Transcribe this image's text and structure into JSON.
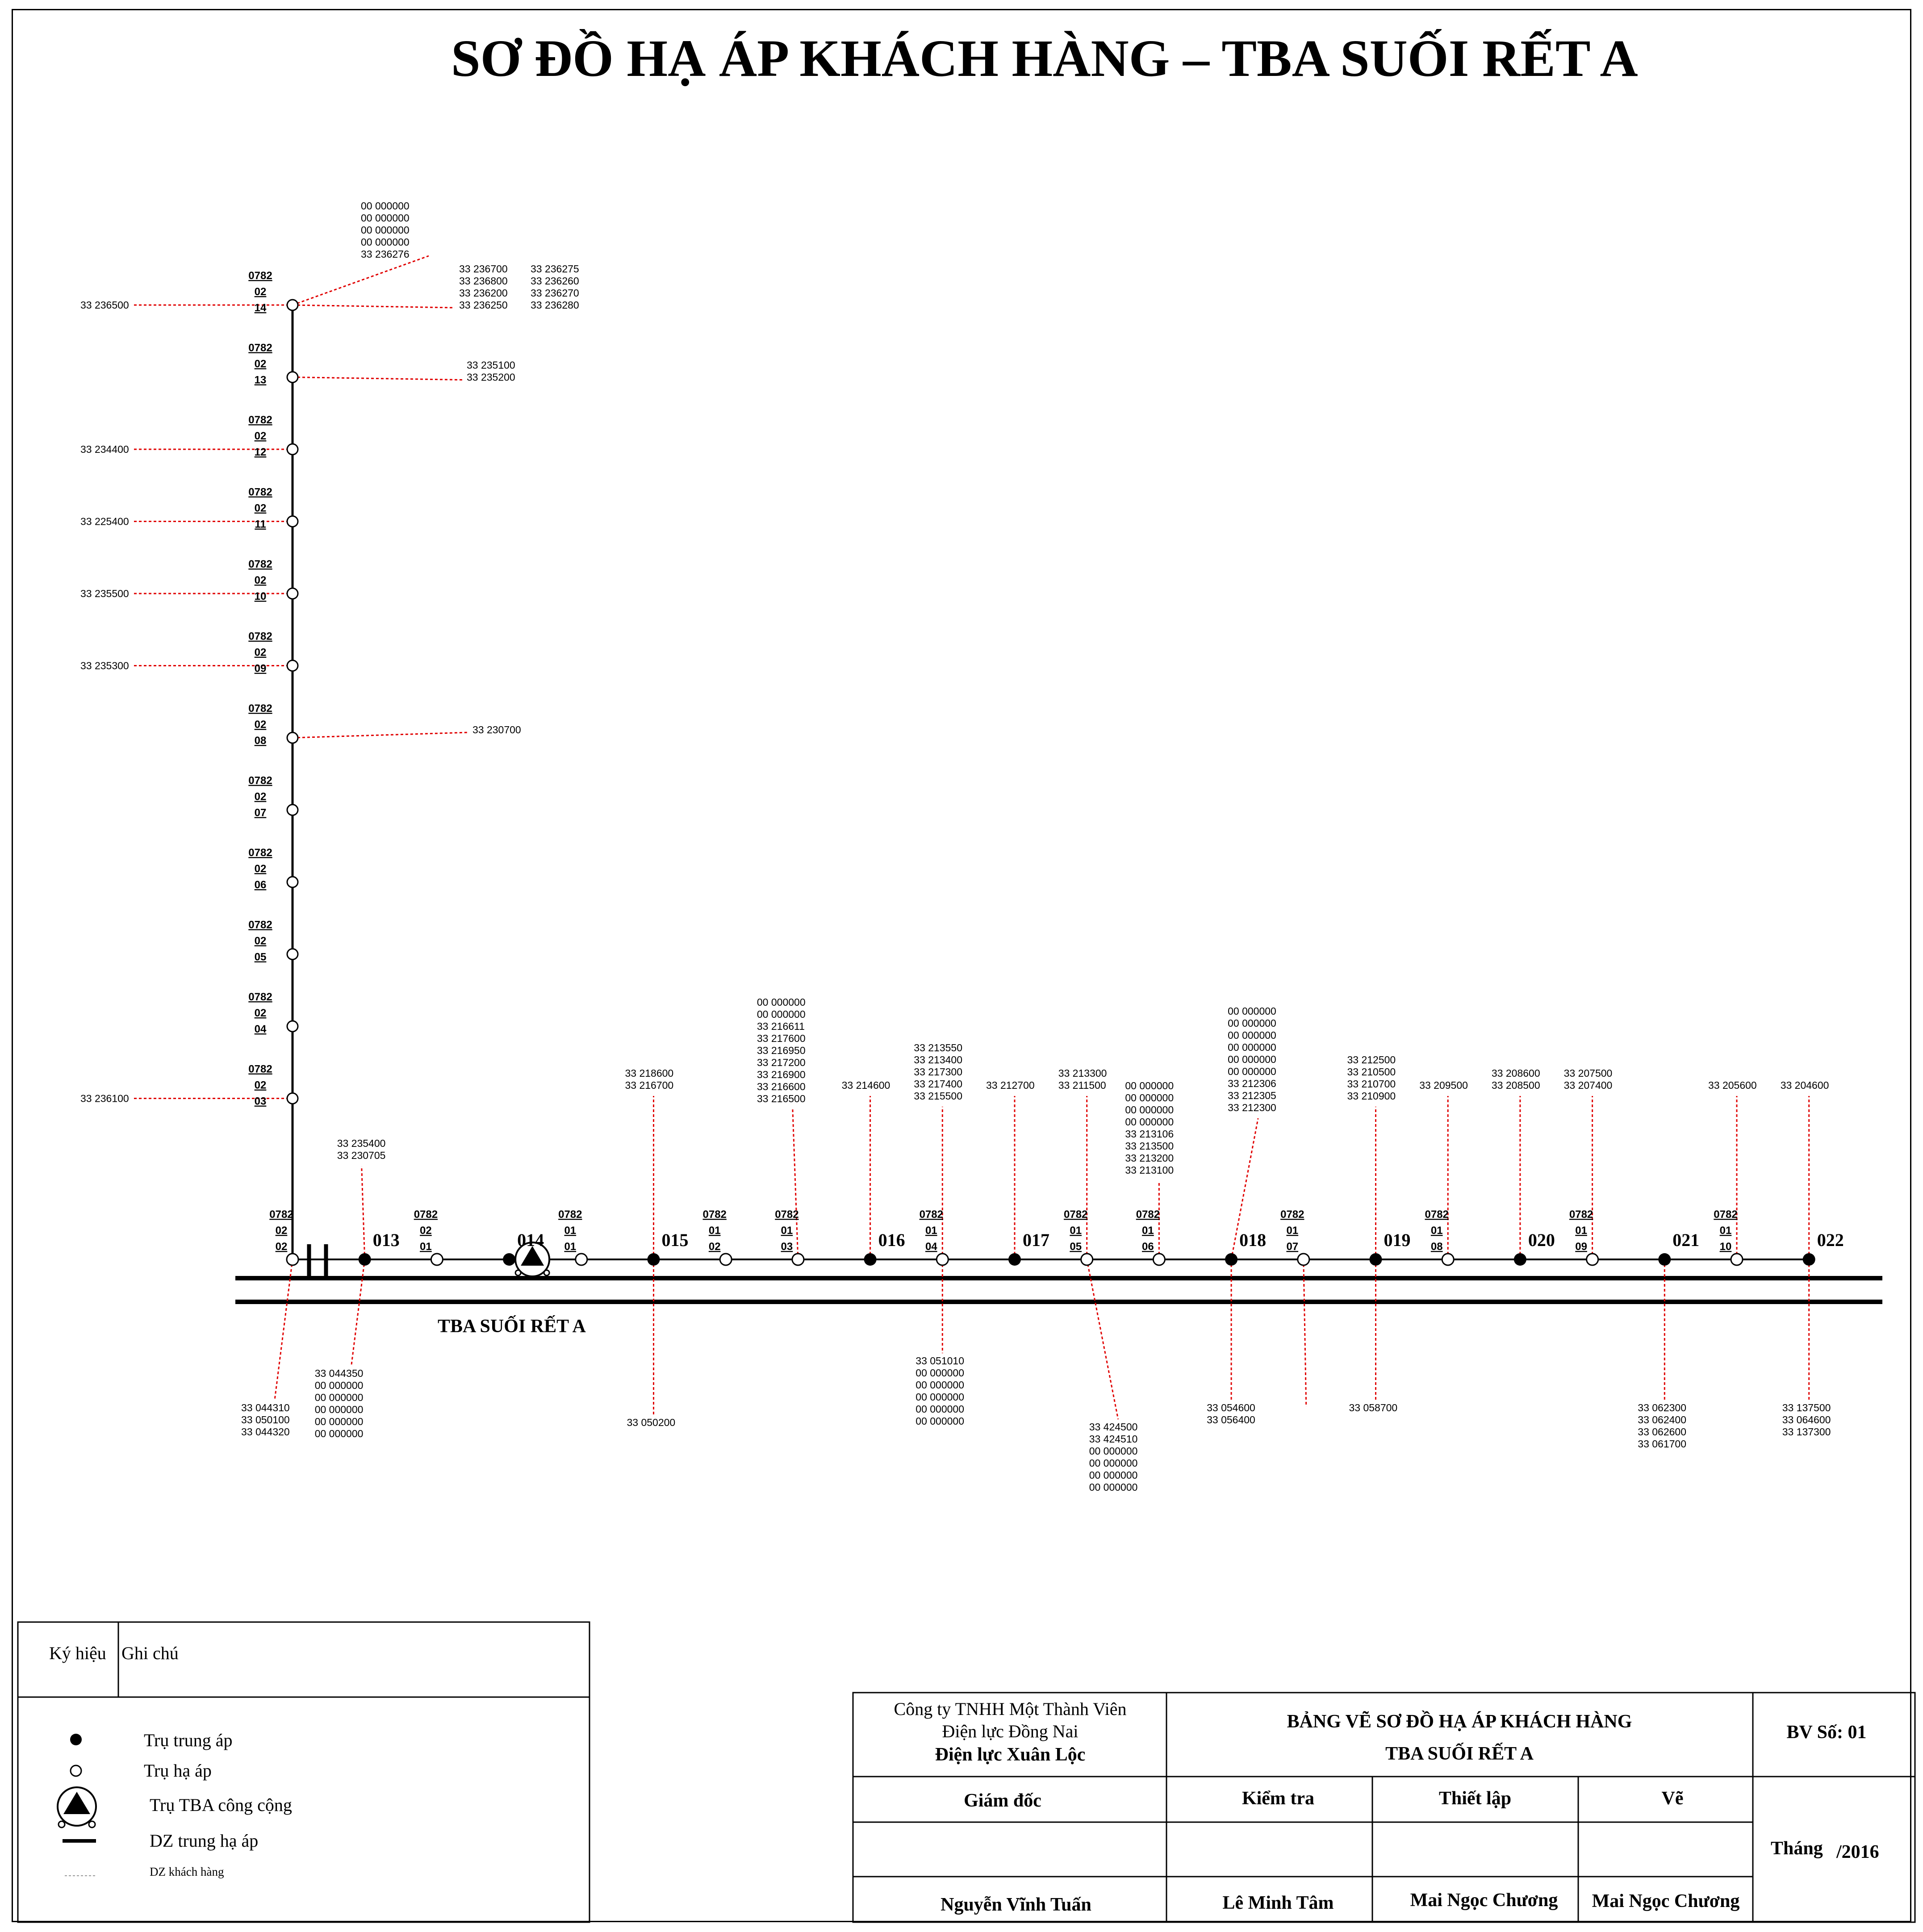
{
  "title": "SƠ ĐỒ HẠ ÁP KHÁCH HÀNG – TBA SUỐI RẾT A",
  "station_label": "TBA SUỐI RẾT A",
  "colors": {
    "line": "#000000",
    "customer_line": "#e00000"
  },
  "vertical_branch": {
    "poles": [
      {
        "code": [
          "0782",
          "02",
          "14"
        ],
        "left": [
          "33 236500"
        ],
        "right_a": [
          "33 236700",
          "33 236800",
          "33 236200",
          "33 236250"
        ],
        "right_b": [
          "33 236275",
          "33 236260",
          "33 236270",
          "33 236280"
        ],
        "top": [
          "00 000000",
          "00 000000",
          "00 000000",
          "00 000000",
          "33 236276"
        ]
      },
      {
        "code": [
          "0782",
          "02",
          "13"
        ],
        "right_a": [
          "33 235100",
          "33 235200"
        ]
      },
      {
        "code": [
          "0782",
          "02",
          "12"
        ],
        "left": [
          "33 234400"
        ]
      },
      {
        "code": [
          "0782",
          "02",
          "11"
        ],
        "left": [
          "33 225400"
        ]
      },
      {
        "code": [
          "0782",
          "02",
          "10"
        ],
        "left": [
          "33 235500"
        ]
      },
      {
        "code": [
          "0782",
          "02",
          "09"
        ],
        "left": [
          "33 235300"
        ]
      },
      {
        "code": [
          "0782",
          "02",
          "08"
        ],
        "right_a": [
          "33 230700"
        ]
      },
      {
        "code": [
          "0782",
          "02",
          "07"
        ]
      },
      {
        "code": [
          "0782",
          "02",
          "06"
        ]
      },
      {
        "code": [
          "0782",
          "02",
          "05"
        ]
      },
      {
        "code": [
          "0782",
          "02",
          "04"
        ]
      },
      {
        "code": [
          "0782",
          "02",
          "03"
        ],
        "left": [
          "33 236100"
        ]
      }
    ]
  },
  "main_line": {
    "poles": [
      {
        "type": "lv",
        "code": [
          "0782",
          "02",
          "02"
        ],
        "below": [
          "33 044310",
          "33 050100",
          "33 044320"
        ]
      },
      {
        "type": "hv",
        "label": "013",
        "above": [
          "33 235400",
          "33 230705"
        ],
        "below": [
          "33 044350",
          "00 000000",
          "00 000000",
          "00 000000",
          "00 000000",
          "00 000000"
        ]
      },
      {
        "type": "lv",
        "code": [
          "0782",
          "02",
          "01"
        ]
      },
      {
        "type": "hv",
        "label": "014"
      },
      {
        "type": "lv",
        "code": [
          "0782",
          "01",
          "01"
        ]
      },
      {
        "type": "hv",
        "label": "015",
        "above": [
          "33 218600",
          "33 216700"
        ],
        "below": [
          "33 050200"
        ]
      },
      {
        "type": "lv",
        "code": [
          "0782",
          "01",
          "02"
        ]
      },
      {
        "type": "lv",
        "code": [
          "0782",
          "01",
          "03"
        ],
        "above": [
          "00 000000",
          "00 000000",
          "33 216611",
          "33 217600",
          "33 216950",
          "33 217200",
          "33 216900",
          "33 216600",
          "33 216500"
        ]
      },
      {
        "type": "hv",
        "label": "016",
        "above": [
          "33 214600"
        ]
      },
      {
        "type": "lv",
        "code": [
          "0782",
          "01",
          "04"
        ],
        "above": [
          "33 213550",
          "33 213400",
          "33 217300",
          "33 217400",
          "33 215500"
        ],
        "below": [
          "33 051010",
          "00 000000",
          "00 000000",
          "00 000000",
          "00 000000",
          "00 000000"
        ]
      },
      {
        "type": "hv",
        "label": "017",
        "above": [
          "33 212700"
        ]
      },
      {
        "type": "lv",
        "code": [
          "0782",
          "01",
          "05"
        ],
        "above": [
          "33 213300",
          "33 211500"
        ],
        "below": [
          "33 424500",
          "33 424510",
          "00 000000",
          "00 000000",
          "00 000000",
          "00 000000"
        ]
      },
      {
        "type": "lv",
        "code": [
          "0782",
          "01",
          "06"
        ],
        "above": [
          "00 000000",
          "00 000000",
          "00 000000",
          "00 000000",
          "33 213106",
          "33 213500",
          "33 213200",
          "33 213100"
        ]
      },
      {
        "type": "hv",
        "label": "018",
        "above": [
          "00 000000",
          "00 000000",
          "00 000000",
          "00 000000",
          "00 000000",
          "00 000000",
          "33 212306",
          "33 212305",
          "33 212300"
        ],
        "below": [
          "33 054600",
          "33 056400"
        ]
      },
      {
        "type": "lv",
        "code": [
          "0782",
          "01",
          "07"
        ]
      },
      {
        "type": "hv",
        "label": "019",
        "above": [
          "33 212500",
          "33 210500",
          "33 210700",
          "33 210900"
        ],
        "below": [
          "33 058700"
        ]
      },
      {
        "type": "lv",
        "code": [
          "0782",
          "01",
          "08"
        ],
        "above": [
          "33 209500"
        ]
      },
      {
        "type": "hv",
        "label": "020",
        "above": [
          "33 208600",
          "33 208500"
        ]
      },
      {
        "type": "lv",
        "code": [
          "0782",
          "01",
          "09"
        ],
        "above": [
          "33 207500",
          "33 207400"
        ]
      },
      {
        "type": "hv",
        "label": "021",
        "below": [
          "33 062300",
          "33 062400",
          "33 062600",
          "33 061700"
        ]
      },
      {
        "type": "lv",
        "code": [
          "0782",
          "01",
          "10"
        ],
        "above": [
          "33 205600"
        ]
      },
      {
        "type": "hv",
        "label": "022",
        "above": [
          "33 204600"
        ],
        "below": [
          "33 137500",
          "33 064600",
          "33 137300"
        ]
      }
    ]
  },
  "legend": {
    "header_symbol": "Ký hiệu",
    "header_note": "Ghi chú",
    "items": [
      {
        "icon": "filled-circle-icon",
        "text": "Trụ trung áp"
      },
      {
        "icon": "open-circle-icon",
        "text": "Trụ hạ áp"
      },
      {
        "icon": "transformer-icon",
        "text": "Trụ TBA công cộng"
      },
      {
        "icon": "thick-line-icon",
        "text": "DZ trung hạ áp"
      },
      {
        "icon": "dashed-line-icon",
        "text": "DZ khách hàng"
      }
    ]
  },
  "title_block": {
    "company_line1": "Công ty TNHH Một Thành Viên",
    "company_line2": "Điện lực Đồng Nai",
    "company_line3": "Điện lực Xuân Lộc",
    "drawing_title1": "BẢNG VẼ SƠ ĐỒ HẠ ÁP KHÁCH HÀNG",
    "drawing_title2": "TBA SUỐI RẾT A",
    "drawing_no": "BV Số: 01",
    "role_director": "Giám đốc",
    "role_check": "Kiểm tra",
    "role_setup": "Thiết lập",
    "role_draw": "Vẽ",
    "name_director": "Nguyễn Vĩnh Tuấn",
    "name_check": "Lê Minh Tâm",
    "name_setup": "Mai Ngọc Chương",
    "name_draw": "Mai Ngọc Chương",
    "month_label": "Tháng",
    "year": "/2016"
  }
}
